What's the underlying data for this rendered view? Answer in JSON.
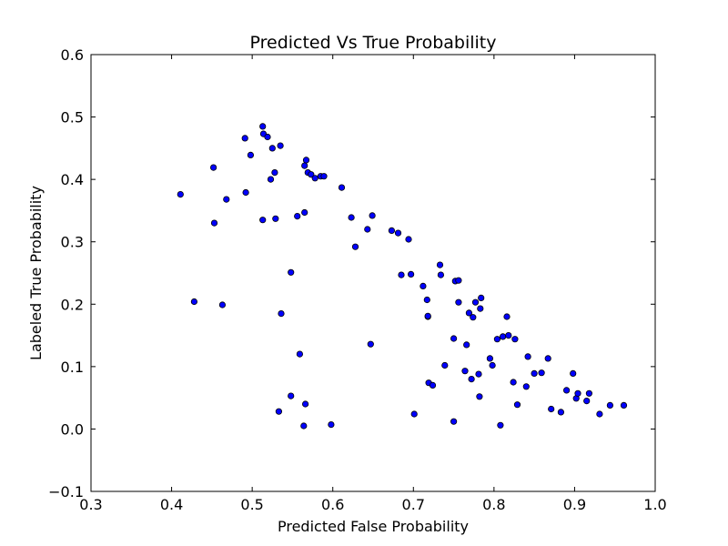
{
  "chart_data": {
    "type": "scatter",
    "title": "Predicted Vs True Probability",
    "xlabel": "Predicted False Probability",
    "ylabel": "Labeled True Probability",
    "xlim": [
      0.3,
      1.0
    ],
    "ylim": [
      -0.1,
      0.6
    ],
    "xticks": [
      "0.3",
      "0.4",
      "0.5",
      "0.6",
      "0.7",
      "0.8",
      "0.9",
      "1.0"
    ],
    "yticks": [
      "−0.1",
      "0.0",
      "0.1",
      "0.2",
      "0.3",
      "0.4",
      "0.5",
      "0.6"
    ],
    "grid": false,
    "marker_color": "#0000ff",
    "marker_edge_color": "#000000",
    "points": [
      {
        "x": 0.411,
        "y": 0.376
      },
      {
        "x": 0.428,
        "y": 0.204
      },
      {
        "x": 0.452,
        "y": 0.419
      },
      {
        "x": 0.453,
        "y": 0.33
      },
      {
        "x": 0.463,
        "y": 0.199
      },
      {
        "x": 0.468,
        "y": 0.368
      },
      {
        "x": 0.491,
        "y": 0.466
      },
      {
        "x": 0.492,
        "y": 0.379
      },
      {
        "x": 0.498,
        "y": 0.439
      },
      {
        "x": 0.513,
        "y": 0.485
      },
      {
        "x": 0.514,
        "y": 0.473
      },
      {
        "x": 0.513,
        "y": 0.335
      },
      {
        "x": 0.519,
        "y": 0.468
      },
      {
        "x": 0.523,
        "y": 0.4
      },
      {
        "x": 0.525,
        "y": 0.45
      },
      {
        "x": 0.528,
        "y": 0.411
      },
      {
        "x": 0.529,
        "y": 0.337
      },
      {
        "x": 0.535,
        "y": 0.454
      },
      {
        "x": 0.536,
        "y": 0.185
      },
      {
        "x": 0.533,
        "y": 0.028
      },
      {
        "x": 0.548,
        "y": 0.251
      },
      {
        "x": 0.548,
        "y": 0.053
      },
      {
        "x": 0.556,
        "y": 0.341
      },
      {
        "x": 0.559,
        "y": 0.12
      },
      {
        "x": 0.565,
        "y": 0.422
      },
      {
        "x": 0.565,
        "y": 0.347
      },
      {
        "x": 0.566,
        "y": 0.04
      },
      {
        "x": 0.564,
        "y": 0.005
      },
      {
        "x": 0.567,
        "y": 0.431
      },
      {
        "x": 0.569,
        "y": 0.411
      },
      {
        "x": 0.573,
        "y": 0.408
      },
      {
        "x": 0.578,
        "y": 0.402
      },
      {
        "x": 0.585,
        "y": 0.405
      },
      {
        "x": 0.589,
        "y": 0.405
      },
      {
        "x": 0.598,
        "y": 0.007
      },
      {
        "x": 0.611,
        "y": 0.387
      },
      {
        "x": 0.623,
        "y": 0.339
      },
      {
        "x": 0.628,
        "y": 0.292
      },
      {
        "x": 0.643,
        "y": 0.32
      },
      {
        "x": 0.647,
        "y": 0.136
      },
      {
        "x": 0.649,
        "y": 0.342
      },
      {
        "x": 0.673,
        "y": 0.318
      },
      {
        "x": 0.681,
        "y": 0.314
      },
      {
        "x": 0.685,
        "y": 0.247
      },
      {
        "x": 0.694,
        "y": 0.304
      },
      {
        "x": 0.697,
        "y": 0.248
      },
      {
        "x": 0.701,
        "y": 0.024
      },
      {
        "x": 0.712,
        "y": 0.229
      },
      {
        "x": 0.717,
        "y": 0.207
      },
      {
        "x": 0.718,
        "y": 0.18
      },
      {
        "x": 0.718,
        "y": 0.181
      },
      {
        "x": 0.719,
        "y": 0.074
      },
      {
        "x": 0.724,
        "y": 0.07
      },
      {
        "x": 0.733,
        "y": 0.263
      },
      {
        "x": 0.734,
        "y": 0.247
      },
      {
        "x": 0.739,
        "y": 0.102
      },
      {
        "x": 0.75,
        "y": 0.145
      },
      {
        "x": 0.752,
        "y": 0.237
      },
      {
        "x": 0.756,
        "y": 0.238
      },
      {
        "x": 0.756,
        "y": 0.203
      },
      {
        "x": 0.75,
        "y": 0.012
      },
      {
        "x": 0.764,
        "y": 0.093
      },
      {
        "x": 0.766,
        "y": 0.135
      },
      {
        "x": 0.769,
        "y": 0.186
      },
      {
        "x": 0.772,
        "y": 0.08
      },
      {
        "x": 0.774,
        "y": 0.179
      },
      {
        "x": 0.777,
        "y": 0.203
      },
      {
        "x": 0.781,
        "y": 0.088
      },
      {
        "x": 0.782,
        "y": 0.052
      },
      {
        "x": 0.783,
        "y": 0.193
      },
      {
        "x": 0.784,
        "y": 0.21
      },
      {
        "x": 0.795,
        "y": 0.113
      },
      {
        "x": 0.798,
        "y": 0.102
      },
      {
        "x": 0.804,
        "y": 0.144
      },
      {
        "x": 0.808,
        "y": 0.006
      },
      {
        "x": 0.811,
        "y": 0.148
      },
      {
        "x": 0.816,
        "y": 0.18
      },
      {
        "x": 0.818,
        "y": 0.15
      },
      {
        "x": 0.824,
        "y": 0.075
      },
      {
        "x": 0.826,
        "y": 0.144
      },
      {
        "x": 0.829,
        "y": 0.039
      },
      {
        "x": 0.84,
        "y": 0.068
      },
      {
        "x": 0.842,
        "y": 0.116
      },
      {
        "x": 0.85,
        "y": 0.089
      },
      {
        "x": 0.859,
        "y": 0.09
      },
      {
        "x": 0.867,
        "y": 0.113
      },
      {
        "x": 0.871,
        "y": 0.032
      },
      {
        "x": 0.883,
        "y": 0.027
      },
      {
        "x": 0.89,
        "y": 0.062
      },
      {
        "x": 0.898,
        "y": 0.089
      },
      {
        "x": 0.902,
        "y": 0.049
      },
      {
        "x": 0.904,
        "y": 0.057
      },
      {
        "x": 0.915,
        "y": 0.045
      },
      {
        "x": 0.918,
        "y": 0.057
      },
      {
        "x": 0.931,
        "y": 0.024
      },
      {
        "x": 0.944,
        "y": 0.038
      },
      {
        "x": 0.961,
        "y": 0.038
      }
    ]
  }
}
